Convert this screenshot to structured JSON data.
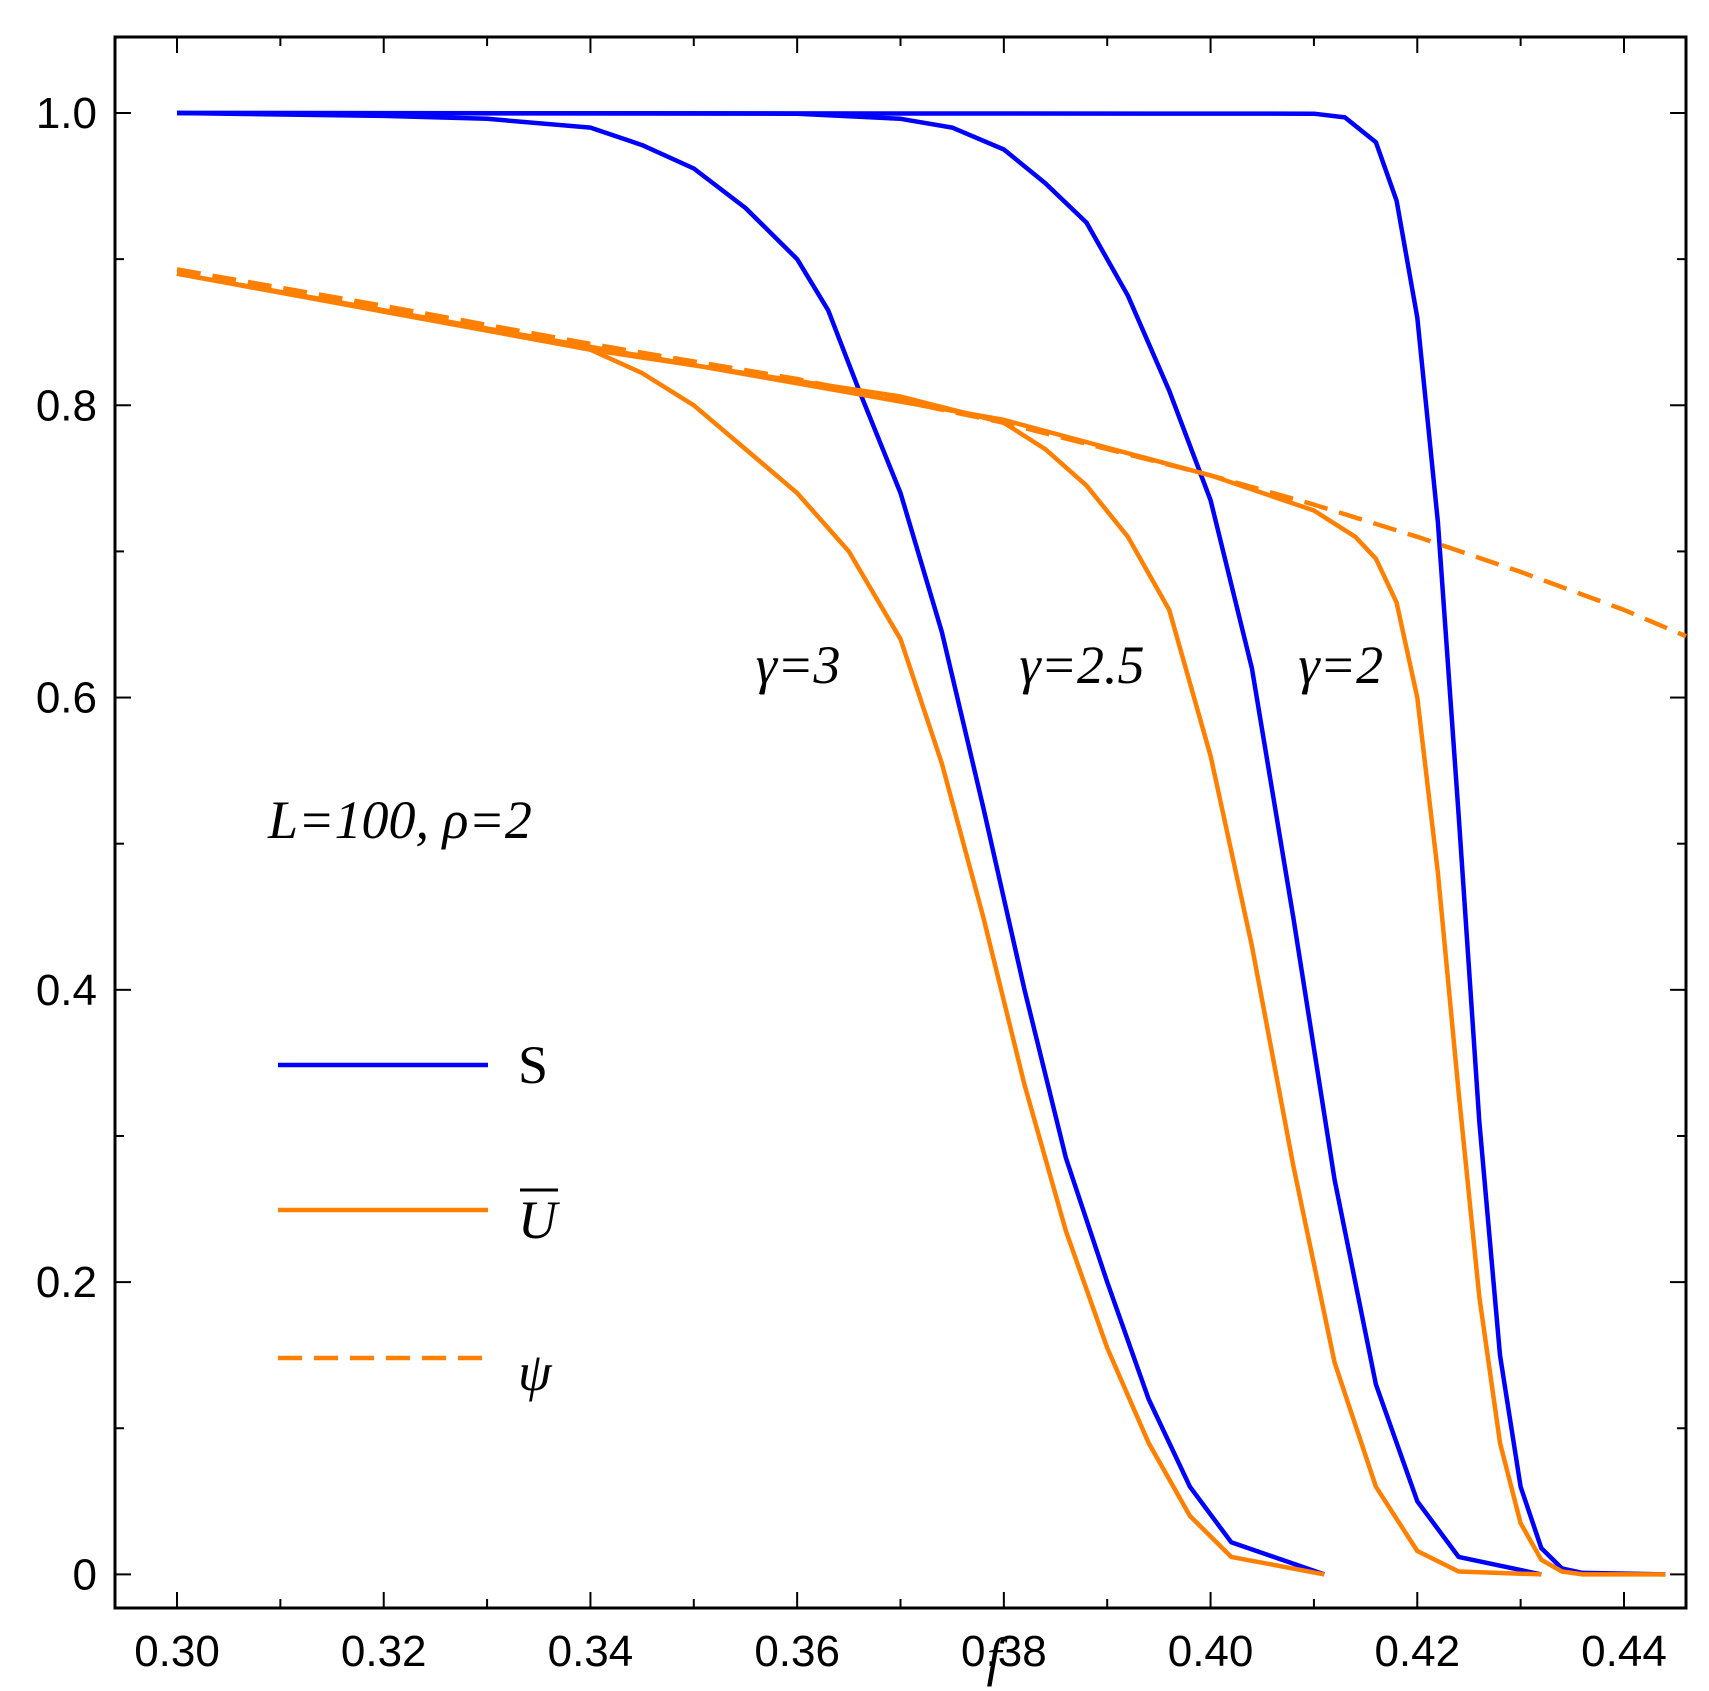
{
  "chart_data": {
    "type": "line",
    "xlabel": "f",
    "ylabel": "",
    "xlim": [
      0.294,
      0.446
    ],
    "ylim": [
      -0.023,
      1.052
    ],
    "grid": false,
    "x_ticks": [
      "0.30",
      "0.32",
      "0.34",
      "0.36",
      "0.38",
      "0.40",
      "0.42",
      "0.44"
    ],
    "x_tick_values": [
      0.3,
      0.32,
      0.34,
      0.36,
      0.38,
      0.4,
      0.42,
      0.44
    ],
    "y_ticks": [
      "0",
      "0.2",
      "0.4",
      "0.6",
      "0.8",
      "1.0"
    ],
    "y_tick_values": [
      0,
      0.2,
      0.4,
      0.6,
      0.8,
      1.0
    ],
    "annotation_params": "L=100, ρ=2",
    "curve_labels": [
      {
        "text": "γ=3",
        "x": 0.356,
        "y": 0.61
      },
      {
        "text": "γ=2.5",
        "x": 0.3815,
        "y": 0.61
      },
      {
        "text": "γ=2",
        "x": 0.4085,
        "y": 0.61
      }
    ],
    "legend": {
      "placement": "left",
      "entries": [
        {
          "label": "S",
          "color": "#0000ff",
          "style": "solid"
        },
        {
          "label": "U",
          "overline": true,
          "color": "#ff8000",
          "style": "solid"
        },
        {
          "label": "ψ",
          "color": "#ff8000",
          "style": "dashed"
        }
      ]
    },
    "series": [
      {
        "kind": "S",
        "gamma": "3",
        "color": "#0000ff",
        "style": "solid",
        "x": [
          0.3,
          0.32,
          0.33,
          0.34,
          0.345,
          0.35,
          0.355,
          0.36,
          0.363,
          0.366,
          0.37,
          0.374,
          0.378,
          0.382,
          0.386,
          0.39,
          0.394,
          0.398,
          0.402,
          0.411
        ],
        "y": [
          1.0,
          0.998,
          0.996,
          0.99,
          0.978,
          0.962,
          0.935,
          0.9,
          0.865,
          0.81,
          0.74,
          0.645,
          0.525,
          0.4,
          0.285,
          0.2,
          0.12,
          0.06,
          0.022,
          0.0
        ]
      },
      {
        "kind": "U",
        "gamma": "3",
        "color": "#ff8000",
        "style": "solid",
        "x": [
          0.3,
          0.32,
          0.34,
          0.345,
          0.35,
          0.355,
          0.36,
          0.365,
          0.37,
          0.374,
          0.378,
          0.382,
          0.386,
          0.39,
          0.394,
          0.398,
          0.402,
          0.411
        ],
        "y": [
          0.89,
          0.865,
          0.838,
          0.822,
          0.8,
          0.77,
          0.74,
          0.7,
          0.64,
          0.555,
          0.45,
          0.335,
          0.235,
          0.155,
          0.09,
          0.04,
          0.012,
          0.0
        ]
      },
      {
        "kind": "S",
        "gamma": "2.5",
        "color": "#0000ff",
        "style": "solid",
        "x": [
          0.3,
          0.36,
          0.37,
          0.375,
          0.38,
          0.384,
          0.388,
          0.392,
          0.396,
          0.4,
          0.404,
          0.408,
          0.412,
          0.416,
          0.42,
          0.424,
          0.432
        ],
        "y": [
          1.0,
          0.9995,
          0.996,
          0.99,
          0.975,
          0.952,
          0.925,
          0.875,
          0.81,
          0.735,
          0.62,
          0.45,
          0.27,
          0.13,
          0.05,
          0.012,
          0.0
        ]
      },
      {
        "kind": "U",
        "gamma": "2.5",
        "color": "#ff8000",
        "style": "solid",
        "x": [
          0.3,
          0.34,
          0.37,
          0.38,
          0.384,
          0.388,
          0.392,
          0.396,
          0.4,
          0.404,
          0.408,
          0.412,
          0.416,
          0.42,
          0.424,
          0.432
        ],
        "y": [
          0.89,
          0.838,
          0.806,
          0.788,
          0.77,
          0.745,
          0.71,
          0.66,
          0.56,
          0.43,
          0.28,
          0.145,
          0.06,
          0.016,
          0.002,
          0.0
        ]
      },
      {
        "kind": "S",
        "gamma": "2",
        "color": "#0000ff",
        "style": "solid",
        "x": [
          0.3,
          0.41,
          0.413,
          0.416,
          0.418,
          0.42,
          0.422,
          0.424,
          0.426,
          0.428,
          0.43,
          0.432,
          0.434,
          0.436,
          0.444
        ],
        "y": [
          1.0,
          0.9995,
          0.997,
          0.98,
          0.94,
          0.86,
          0.72,
          0.52,
          0.31,
          0.15,
          0.06,
          0.018,
          0.004,
          0.001,
          0.0
        ]
      },
      {
        "kind": "U",
        "gamma": "2",
        "color": "#ff8000",
        "style": "solid",
        "x": [
          0.3,
          0.38,
          0.4,
          0.41,
          0.414,
          0.416,
          0.418,
          0.42,
          0.422,
          0.424,
          0.426,
          0.428,
          0.43,
          0.432,
          0.434,
          0.436,
          0.444
        ],
        "y": [
          0.89,
          0.79,
          0.752,
          0.728,
          0.71,
          0.695,
          0.665,
          0.6,
          0.48,
          0.33,
          0.19,
          0.09,
          0.035,
          0.01,
          0.002,
          0.0,
          0.0
        ]
      },
      {
        "kind": "psi",
        "gamma": "",
        "color": "#ff8000",
        "style": "dashed",
        "x": [
          0.3,
          0.32,
          0.34,
          0.36,
          0.38,
          0.4,
          0.41,
          0.42,
          0.43,
          0.44,
          0.446
        ],
        "y": [
          0.893,
          0.868,
          0.842,
          0.818,
          0.788,
          0.752,
          0.732,
          0.71,
          0.686,
          0.66,
          0.642
        ]
      }
    ]
  }
}
